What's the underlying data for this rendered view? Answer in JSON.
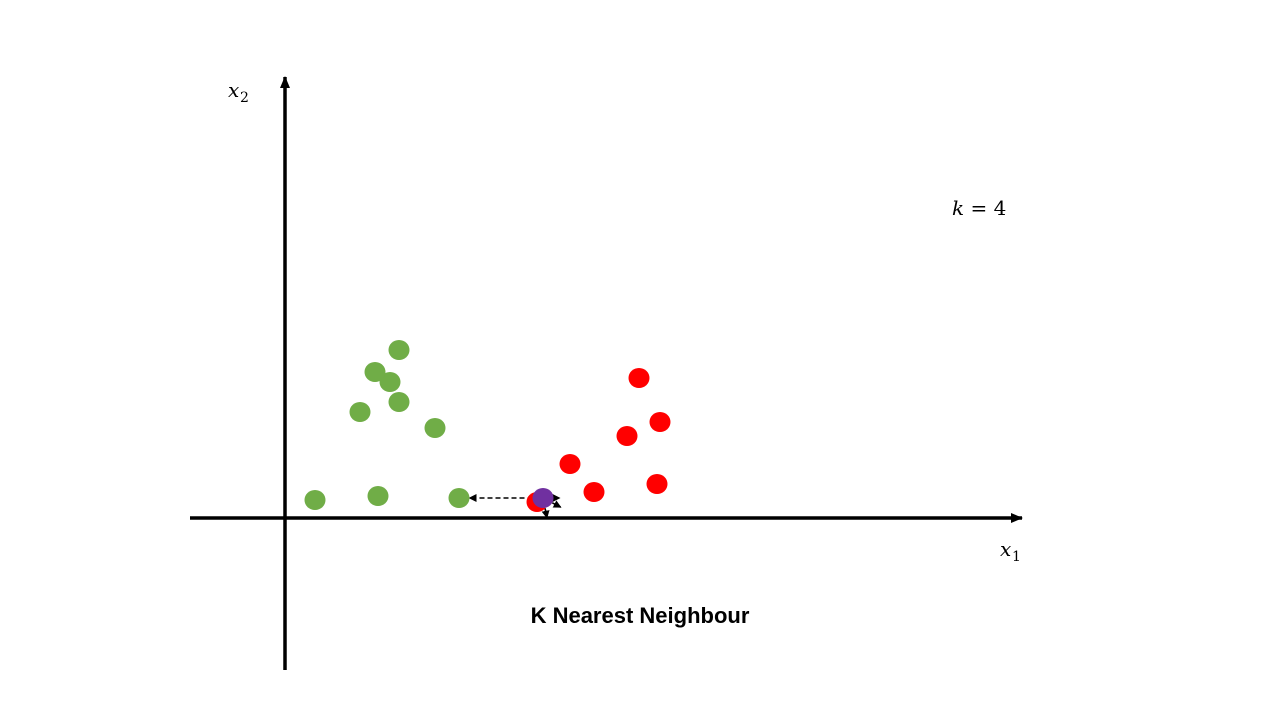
{
  "colors": {
    "class_a": "#70ad47",
    "class_b": "#ff0000",
    "query": "#7030a0",
    "axis": "#000000"
  },
  "labels": {
    "x_axis_var": "x",
    "x_axis_sub": "1",
    "y_axis_var": "x",
    "y_axis_sub": "2",
    "k_var": "k",
    "k_rest": " = 4",
    "caption": "K Nearest Neighbour"
  },
  "chart_data": {
    "type": "scatter",
    "k": 4,
    "series": [
      {
        "class": "green",
        "points": [
          [
            1.0,
            0.9
          ],
          [
            3.1,
            1.1
          ],
          [
            2.5,
            5.3
          ],
          [
            3.8,
            5.8
          ],
          [
            3.5,
            6.8
          ],
          [
            5.0,
            4.5
          ],
          [
            5.8,
            1.0
          ],
          [
            3.8,
            8.4
          ],
          [
            3.0,
            7.3
          ]
        ]
      },
      {
        "class": "red",
        "points": [
          [
            9.5,
            2.7
          ],
          [
            11.4,
            4.1
          ],
          [
            12.5,
            4.8
          ],
          [
            11.8,
            7.0
          ],
          [
            12.4,
            1.7
          ],
          [
            10.3,
            1.3
          ],
          [
            8.4,
            0.8
          ]
        ]
      },
      {
        "class": "purple",
        "points": [
          [
            8.6,
            1.0
          ]
        ]
      }
    ],
    "neighbor_links": [
      [
        8.6,
        1.0,
        5.8,
        1.0
      ],
      [
        8.6,
        1.0,
        9.5,
        1.0
      ],
      [
        8.6,
        1.0,
        9.5,
        0.3
      ],
      [
        8.6,
        1.0,
        8.8,
        -0.5
      ]
    ]
  }
}
